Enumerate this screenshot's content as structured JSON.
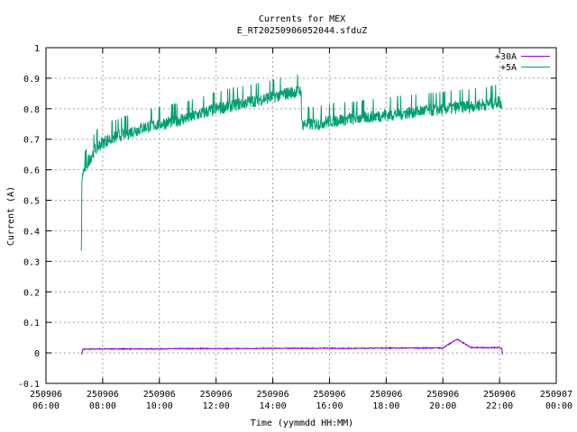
{
  "chart_data": {
    "type": "line",
    "title": "Currents for MEX",
    "subtitle": "E_RT20250906052044.sfduZ",
    "xlabel": "Time (yymmdd HH:MM)",
    "ylabel": "Current (A)",
    "ylim": [
      -0.1,
      1.0
    ],
    "xlim": [
      "2025-09-06 06:00",
      "2025-09-07 00:00"
    ],
    "yticks": [
      "-0.1",
      "0",
      "0.1",
      "0.2",
      "0.3",
      "0.4",
      "0.5",
      "0.6",
      "0.7",
      "0.8",
      "0.9",
      "1"
    ],
    "xticks": [
      {
        "date": "250906",
        "time": "06:00"
      },
      {
        "date": "250906",
        "time": "08:00"
      },
      {
        "date": "250906",
        "time": "10:00"
      },
      {
        "date": "250906",
        "time": "12:00"
      },
      {
        "date": "250906",
        "time": "14:00"
      },
      {
        "date": "250906",
        "time": "16:00"
      },
      {
        "date": "250906",
        "time": "18:00"
      },
      {
        "date": "250906",
        "time": "20:00"
      },
      {
        "date": "250906",
        "time": "22:00"
      },
      {
        "date": "250907",
        "time": "00:00"
      }
    ],
    "grid": true,
    "legend_position": "top-right",
    "series": [
      {
        "name": "+30A",
        "color": "#9400d3",
        "x": [
          "07:15",
          "07:18",
          "07:20",
          "08:00",
          "09:00",
          "10:00",
          "11:00",
          "12:00",
          "13:00",
          "14:00",
          "15:00",
          "16:00",
          "17:00",
          "18:00",
          "19:00",
          "20:00",
          "20:30",
          "21:00",
          "22:00",
          "22:05",
          "22:06"
        ],
        "values": [
          -0.005,
          0.012,
          0.012,
          0.013,
          0.013,
          0.013,
          0.014,
          0.014,
          0.014,
          0.015,
          0.015,
          0.015,
          0.015,
          0.016,
          0.016,
          0.016,
          0.045,
          0.017,
          0.017,
          0.014,
          -0.005
        ]
      },
      {
        "name": "+5A",
        "color": "#009e73",
        "x": [
          "07:15",
          "07:16",
          "07:18",
          "07:30",
          "07:45",
          "08:00",
          "08:30",
          "09:00",
          "09:30",
          "10:00",
          "10:30",
          "11:00",
          "11:30",
          "12:00",
          "12:30",
          "13:00",
          "13:30",
          "14:00",
          "14:30",
          "15:00",
          "15:01",
          "15:30",
          "16:00",
          "17:00",
          "18:00",
          "19:00",
          "20:00",
          "21:00",
          "21:30",
          "22:00",
          "22:05"
        ],
        "values": [
          0.335,
          0.56,
          0.59,
          0.63,
          0.67,
          0.69,
          0.71,
          0.725,
          0.74,
          0.75,
          0.76,
          0.77,
          0.785,
          0.8,
          0.81,
          0.82,
          0.83,
          0.84,
          0.85,
          0.86,
          0.75,
          0.75,
          0.76,
          0.77,
          0.78,
          0.79,
          0.8,
          0.81,
          0.815,
          0.825,
          0.81
        ]
      }
    ]
  }
}
